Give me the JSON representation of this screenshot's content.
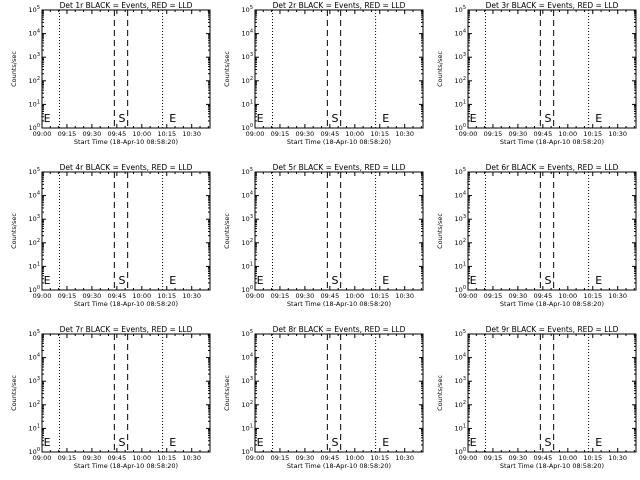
{
  "colors": {
    "background": "#ffffff",
    "axes": "#000000"
  },
  "chart_data": [
    {
      "type": "line",
      "title": "Det 1r BLACK = Events, RED = LLD",
      "xlabel": "Start Time (18-Apr-10 08:58:20)",
      "ylabel": "Counts/sec"
    },
    {
      "type": "line",
      "title": "Det 2r BLACK = Events, RED = LLD",
      "xlabel": "Start Time (18-Apr-10 08:58:20)",
      "ylabel": "Counts/sec"
    },
    {
      "type": "line",
      "title": "Det 3r BLACK = Events, RED = LLD",
      "xlabel": "Start Time (18-Apr-10 08:58:20)",
      "ylabel": "Counts/sec"
    },
    {
      "type": "line",
      "title": "Det 4r BLACK = Events, RED = LLD",
      "xlabel": "Start Time (18-Apr-10 08:58:20)",
      "ylabel": "Counts/sec"
    },
    {
      "type": "line",
      "title": "Det 5r BLACK = Events, RED = LLD",
      "xlabel": "Start Time (18-Apr-10 08:58:20)",
      "ylabel": "Counts/sec"
    },
    {
      "type": "line",
      "title": "Det 6r BLACK = Events, RED = LLD",
      "xlabel": "Start Time (18-Apr-10 08:58:20)",
      "ylabel": "Counts/sec"
    },
    {
      "type": "line",
      "title": "Det 7r BLACK = Events, RED = LLD",
      "xlabel": "Start Time (18-Apr-10 08:58:20)",
      "ylabel": "Counts/sec"
    },
    {
      "type": "line",
      "title": "Det 8r BLACK = Events, RED = LLD",
      "xlabel": "Start Time (18-Apr-10 08:58:20)",
      "ylabel": "Counts/sec"
    },
    {
      "type": "line",
      "title": "Det 9r BLACK = Events, RED = LLD",
      "xlabel": "Start Time (18-Apr-10 08:58:20)",
      "ylabel": "Counts/sec"
    }
  ],
  "axes": {
    "x_ticks": [
      "09:00",
      "09:15",
      "09:30",
      "09:45",
      "10:00",
      "10:15",
      "10:30"
    ],
    "x_tick_minutes": [
      0,
      15,
      30,
      45,
      60,
      75,
      90
    ],
    "xlim_minutes": [
      0,
      101
    ],
    "y_scale": "log",
    "ylim": [
      1,
      100000
    ],
    "y_ticks": [
      {
        "base": "10",
        "exp": "0"
      },
      {
        "base": "10",
        "exp": "1"
      },
      {
        "base": "10",
        "exp": "2"
      },
      {
        "base": "10",
        "exp": "3"
      },
      {
        "base": "10",
        "exp": "4"
      },
      {
        "base": "10",
        "exp": "5"
      }
    ],
    "grid": false
  },
  "dotted_lines_minutes": [
    10.5,
    72.5
  ],
  "markers": [
    {
      "label": "E",
      "minute": 1
    },
    {
      "label": "S",
      "minute": 46
    },
    {
      "label": "E",
      "minute": 76.5
    }
  ],
  "dashed_lines_minutes": [
    43.5,
    51.5
  ]
}
